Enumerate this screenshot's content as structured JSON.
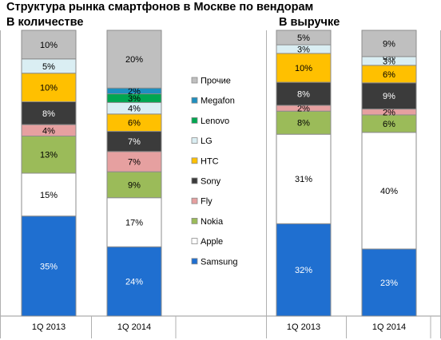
{
  "title": "Структура рынка смартфонов в Москве по вендорам",
  "chart_data": [
    {
      "type": "bar",
      "stacked": true,
      "title": "В количестве",
      "categories": [
        "1Q 2013",
        "1Q 2014"
      ],
      "ylim": [
        0,
        100
      ],
      "grid": false,
      "legend": "center",
      "series": [
        {
          "name": "Samsung",
          "color": "#1F6FD0",
          "values": [
            35,
            24
          ],
          "labels": [
            "35%",
            "24%"
          ]
        },
        {
          "name": "Apple",
          "color": "#FFFFFF",
          "values": [
            15,
            17
          ],
          "labels": [
            "15%",
            "17%"
          ]
        },
        {
          "name": "Nokia",
          "color": "#9BBB59",
          "values": [
            13,
            9
          ],
          "labels": [
            "13%",
            "9%"
          ]
        },
        {
          "name": "Fly",
          "color": "#E6A0A0",
          "values": [
            4,
            7
          ],
          "labels": [
            "4%",
            "7%"
          ]
        },
        {
          "name": "Sony",
          "color": "#3B3B3B",
          "values": [
            8,
            7
          ],
          "labels": [
            "8%",
            "7%"
          ]
        },
        {
          "name": "HTC",
          "color": "#FFC000",
          "values": [
            10,
            6
          ],
          "labels": [
            "10%",
            "6%"
          ]
        },
        {
          "name": "LG",
          "color": "#DAEEF3",
          "values": [
            5,
            4
          ],
          "labels": [
            "5%",
            "4%"
          ]
        },
        {
          "name": "Lenovo",
          "color": "#00A651",
          "values": [
            0,
            3
          ],
          "labels": [
            "",
            "3%"
          ]
        },
        {
          "name": "Megafon",
          "color": "#1F8FBF",
          "values": [
            0,
            2
          ],
          "labels": [
            "",
            "2%"
          ]
        },
        {
          "name": "Прочие",
          "color": "#BFBFBF",
          "values": [
            10,
            20
          ],
          "labels": [
            "10%",
            "20%"
          ]
        }
      ]
    },
    {
      "type": "bar",
      "stacked": true,
      "title": "В выручке",
      "categories": [
        "1Q 2013",
        "1Q 2014"
      ],
      "ylim": [
        0,
        100
      ],
      "grid": false,
      "series": [
        {
          "name": "Samsung",
          "color": "#1F6FD0",
          "values": [
            32,
            23
          ],
          "labels": [
            "32%",
            "23%"
          ]
        },
        {
          "name": "Apple",
          "color": "#FFFFFF",
          "values": [
            31,
            40
          ],
          "labels": [
            "31%",
            "40%"
          ]
        },
        {
          "name": "Nokia",
          "color": "#9BBB59",
          "values": [
            8,
            6
          ],
          "labels": [
            "8%",
            "6%"
          ]
        },
        {
          "name": "Fly",
          "color": "#E6A0A0",
          "values": [
            2,
            2
          ],
          "labels": [
            "2%",
            "2%"
          ]
        },
        {
          "name": "Sony",
          "color": "#3B3B3B",
          "values": [
            8,
            9
          ],
          "labels": [
            "8%",
            "9%"
          ]
        },
        {
          "name": "HTC",
          "color": "#FFC000",
          "values": [
            10,
            6
          ],
          "labels": [
            "10%",
            "6%"
          ]
        },
        {
          "name": "LG",
          "color": "#DAEEF3",
          "values": [
            3,
            3
          ],
          "labels": [
            "3%",
            "3%"
          ]
        },
        {
          "name": "Lenovo",
          "color": "#00A651",
          "values": [
            0,
            0
          ],
          "labels": [
            "",
            "0%"
          ]
        },
        {
          "name": "Megafon",
          "color": "#1F8FBF",
          "values": [
            0,
            0
          ],
          "labels": [
            "",
            ""
          ]
        },
        {
          "name": "Прочие",
          "color": "#BFBFBF",
          "values": [
            5,
            9
          ],
          "labels": [
            "5%",
            "9%"
          ]
        }
      ]
    }
  ]
}
